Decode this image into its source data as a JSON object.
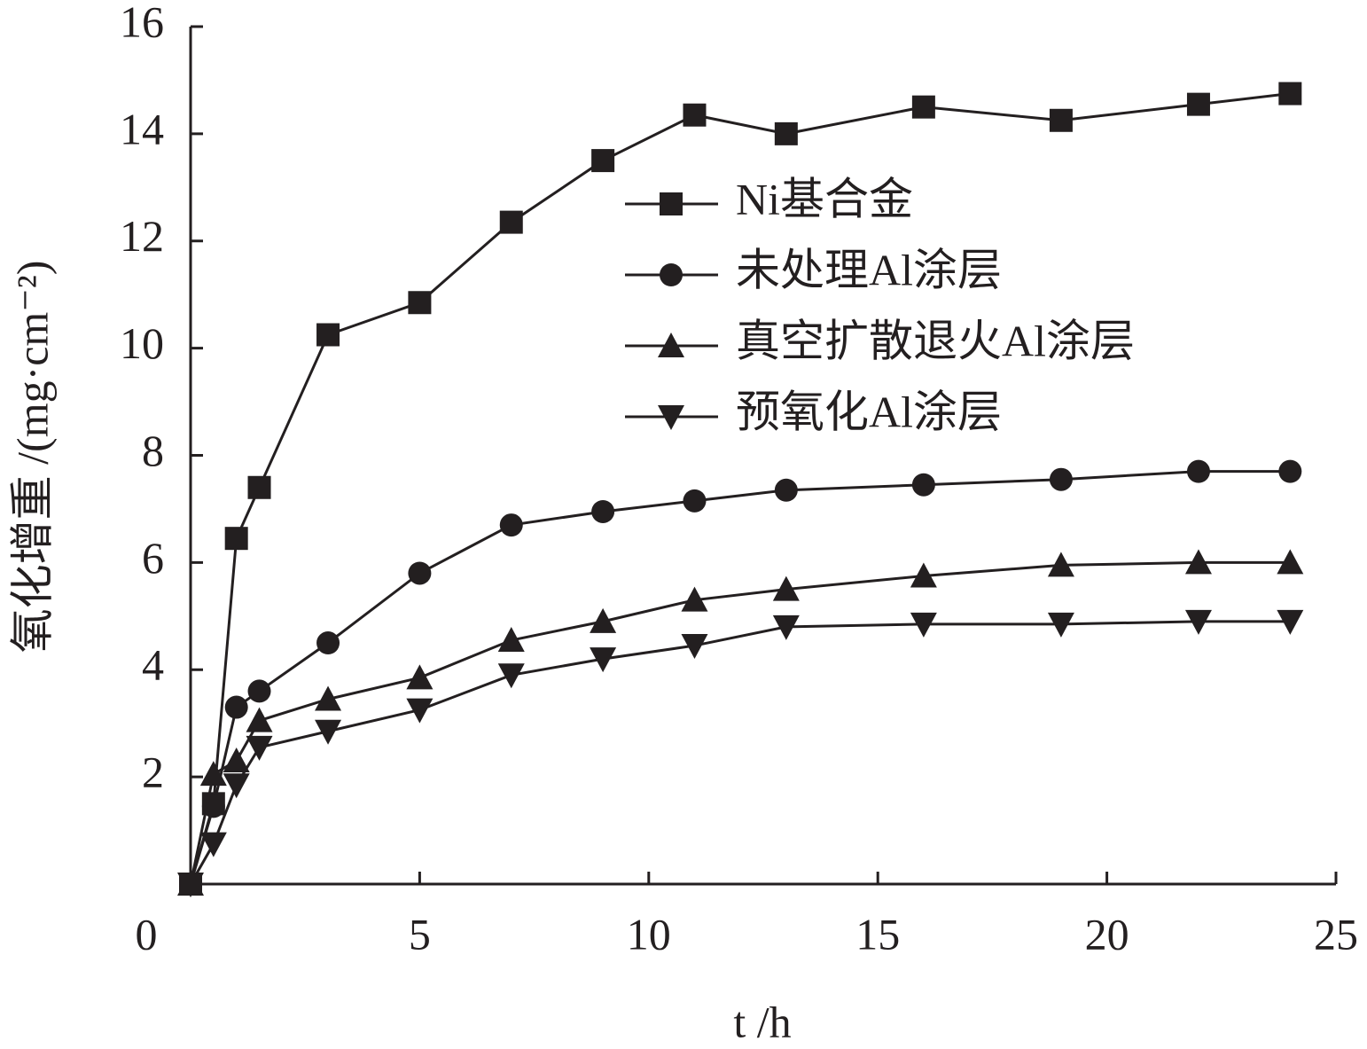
{
  "chart_data": {
    "type": "line",
    "x_label": "t /h",
    "y_label": "氧化增重 /(mg·cm⁻²)",
    "x": [
      0,
      0.5,
      1,
      1.5,
      3,
      5,
      7,
      9,
      11,
      13,
      16,
      19,
      22,
      24
    ],
    "series": [
      {
        "name": "Ni基合金",
        "color": "#231f20",
        "marker": "square",
        "values": [
          0,
          1.5,
          6.45,
          7.4,
          10.25,
          10.85,
          12.35,
          13.5,
          14.35,
          14.0,
          14.5,
          14.25,
          14.55,
          14.75
        ]
      },
      {
        "name": "未处理Al涂层",
        "color": "#231f20",
        "marker": "circle",
        "values": [
          0,
          1.45,
          3.3,
          3.6,
          4.5,
          5.8,
          6.7,
          6.95,
          7.15,
          7.35,
          7.45,
          7.55,
          7.7,
          7.7
        ]
      },
      {
        "name": "真空扩散退火Al涂层",
        "color": "#231f20",
        "marker": "triangle-up",
        "values": [
          0,
          2.05,
          2.3,
          3.05,
          3.45,
          3.85,
          4.55,
          4.9,
          5.3,
          5.5,
          5.75,
          5.95,
          6.0,
          6.0
        ]
      },
      {
        "name": "预氧化Al涂层",
        "color": "#231f20",
        "marker": "triangle-down",
        "values": [
          0,
          0.75,
          1.85,
          2.55,
          2.85,
          3.25,
          3.9,
          4.2,
          4.45,
          4.8,
          4.85,
          4.85,
          4.9,
          4.9
        ]
      }
    ],
    "xlim": [
      0,
      25
    ],
    "xticks": [
      0,
      5,
      10,
      15,
      20,
      25
    ],
    "ylim": [
      0,
      16
    ],
    "yticks": [
      2,
      4,
      6,
      8,
      10,
      12,
      14,
      16
    ],
    "grid": false,
    "legend": "upper right"
  }
}
